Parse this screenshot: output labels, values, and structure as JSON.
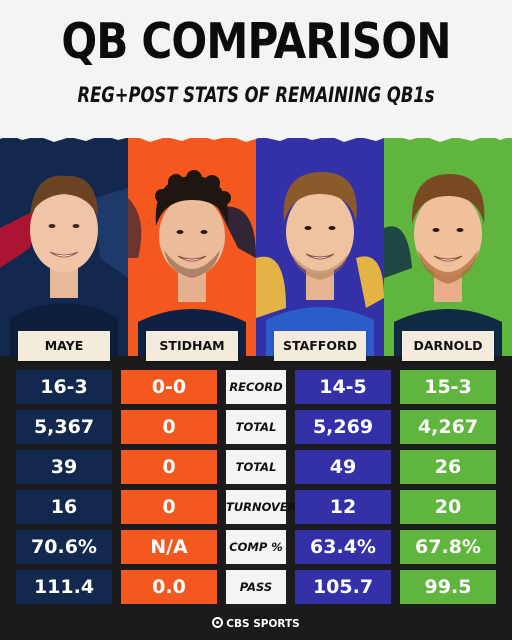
{
  "header": {
    "title": "QB COMPARISON",
    "subtitle": "REG+POST STATS OF REMAINING QB1s"
  },
  "players": [
    {
      "name": "MAYE",
      "team_icon": "patriots-logo-icon",
      "color": "#13284f"
    },
    {
      "name": "STIDHAM",
      "team_icon": "broncos-logo-icon",
      "color": "#f4581f"
    },
    {
      "name": "STAFFORD",
      "team_icon": "rams-logo-icon",
      "color": "#3330a8"
    },
    {
      "name": "DARNOLD",
      "team_icon": "seahawks-logo-icon",
      "color": "#5fb53e"
    }
  ],
  "rows": [
    {
      "label": "RECORD",
      "maye": "16-3",
      "stidham": "0-0",
      "stafford": "14-5",
      "darnold": "15-3"
    },
    {
      "label": "TOTAL YDS",
      "maye": "5,367",
      "stidham": "0",
      "stafford": "5,269",
      "darnold": "4,267"
    },
    {
      "label": "TOTAL TDS",
      "maye": "39",
      "stidham": "0",
      "stafford": "49",
      "darnold": "26"
    },
    {
      "label": "TURNOVERS",
      "maye": "16",
      "stidham": "0",
      "stafford": "12",
      "darnold": "20"
    },
    {
      "label": "COMP %",
      "maye": "70.6%",
      "stidham": "N/A",
      "stafford": "63.4%",
      "darnold": "67.8%"
    },
    {
      "label": "PASS RTG",
      "maye": "111.4",
      "stidham": "0.0",
      "stafford": "105.7",
      "darnold": "99.5"
    }
  ],
  "footer": {
    "brand": "CBS SPORTS",
    "brand_icon": "cbs-eye-icon"
  },
  "colors": {
    "patriots": "#13284f",
    "broncos": "#f4581f",
    "rams": "#3330a8",
    "seahawks": "#5fb53e",
    "stats_background": "#1b1b1d",
    "label_background": "#f4f4f2"
  }
}
